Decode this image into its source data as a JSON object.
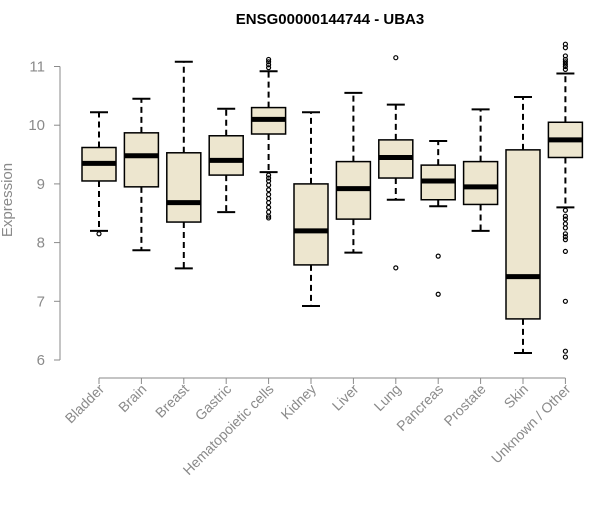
{
  "chart_data": {
    "type": "box",
    "title": "ENSG00000144744 - UBA3",
    "xlabel": "",
    "ylabel": "Expression",
    "ylim": [
      6,
      11.4
    ],
    "yticks": [
      6,
      7,
      8,
      9,
      10,
      11
    ],
    "box_fill": "#ede6cf",
    "categories": [
      "Bladder",
      "Brain",
      "Breast",
      "Gastric",
      "Hematopoietic cells",
      "Kidney",
      "Liver",
      "Lung",
      "Pancreas",
      "Prostate",
      "Skin",
      "Unknown / Other"
    ],
    "boxes": [
      {
        "category": "Bladder",
        "whisker_low": 8.2,
        "q1": 9.05,
        "median": 9.35,
        "q3": 9.62,
        "whisker_high": 10.22,
        "outliers": [
          8.15
        ]
      },
      {
        "category": "Brain",
        "whisker_low": 7.87,
        "q1": 8.95,
        "median": 9.48,
        "q3": 9.87,
        "whisker_high": 10.45,
        "outliers": []
      },
      {
        "category": "Breast",
        "whisker_low": 7.56,
        "q1": 8.35,
        "median": 8.68,
        "q3": 9.53,
        "whisker_high": 11.08,
        "outliers": []
      },
      {
        "category": "Gastric",
        "whisker_low": 8.52,
        "q1": 9.15,
        "median": 9.4,
        "q3": 9.82,
        "whisker_high": 10.28,
        "outliers": []
      },
      {
        "category": "Hematopoietic cells",
        "whisker_low": 9.2,
        "q1": 9.85,
        "median": 10.1,
        "q3": 10.3,
        "whisker_high": 10.92,
        "outliers": [
          11.12,
          11.08,
          11.03,
          10.98,
          9.15,
          9.1,
          9.05,
          8.98,
          8.9,
          8.82,
          8.75,
          8.68,
          8.6,
          8.52,
          8.45,
          8.42
        ]
      },
      {
        "category": "Kidney",
        "whisker_low": 6.92,
        "q1": 7.62,
        "median": 8.2,
        "q3": 9.0,
        "whisker_high": 10.22,
        "outliers": []
      },
      {
        "category": "Liver",
        "whisker_low": 7.83,
        "q1": 8.4,
        "median": 8.92,
        "q3": 9.38,
        "whisker_high": 10.55,
        "outliers": []
      },
      {
        "category": "Lung",
        "whisker_low": 8.73,
        "q1": 9.1,
        "median": 9.45,
        "q3": 9.75,
        "whisker_high": 10.35,
        "outliers": [
          11.15,
          7.57
        ]
      },
      {
        "category": "Pancreas",
        "whisker_low": 8.62,
        "q1": 8.73,
        "median": 9.05,
        "q3": 9.32,
        "whisker_high": 9.73,
        "outliers": [
          7.77,
          7.12
        ]
      },
      {
        "category": "Prostate",
        "whisker_low": 8.2,
        "q1": 8.65,
        "median": 8.95,
        "q3": 9.38,
        "whisker_high": 10.27,
        "outliers": []
      },
      {
        "category": "Skin",
        "whisker_low": 6.12,
        "q1": 6.7,
        "median": 7.42,
        "q3": 9.58,
        "whisker_high": 10.48,
        "outliers": []
      },
      {
        "category": "Unknown / Other",
        "whisker_low": 8.6,
        "q1": 9.45,
        "median": 9.75,
        "q3": 10.05,
        "whisker_high": 10.88,
        "outliers": [
          11.38,
          11.32,
          11.18,
          11.12,
          11.08,
          11.04,
          11.0,
          10.95,
          8.55,
          8.45,
          8.4,
          8.32,
          8.25,
          8.15,
          8.1,
          8.05,
          7.85,
          7.0,
          6.15,
          6.05
        ]
      }
    ]
  }
}
